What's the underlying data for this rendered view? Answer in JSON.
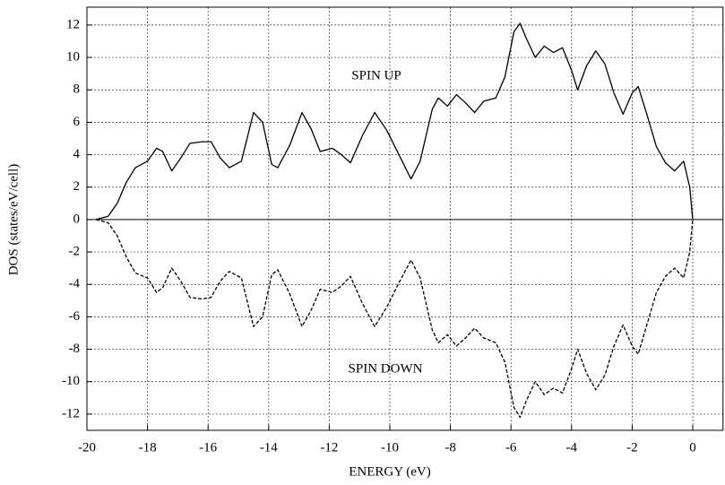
{
  "chart_data": {
    "type": "line",
    "x_label": "ENERGY (eV)",
    "y_label": "DOS (states/eV/cell)",
    "xlim": [
      -20,
      1
    ],
    "ylim": [
      -13,
      13.1
    ],
    "xticks": [
      -20,
      -18,
      -16,
      -14,
      -12,
      -10,
      -8,
      -6,
      -4,
      -2,
      0
    ],
    "yticks": [
      -12,
      -10,
      -8,
      -6,
      -4,
      -2,
      0,
      2,
      4,
      6,
      8,
      10,
      12
    ],
    "grid": true,
    "zero_line": true,
    "x": [
      -19.7,
      -19.3,
      -19.0,
      -18.7,
      -18.4,
      -18.0,
      -17.7,
      -17.5,
      -17.2,
      -16.9,
      -16.6,
      -16.2,
      -15.9,
      -15.6,
      -15.3,
      -14.9,
      -14.5,
      -14.2,
      -13.9,
      -13.7,
      -13.3,
      -12.9,
      -12.6,
      -12.3,
      -11.9,
      -11.6,
      -11.3,
      -10.9,
      -10.5,
      -10.1,
      -9.7,
      -9.3,
      -9.0,
      -8.6,
      -8.4,
      -8.1,
      -7.8,
      -7.5,
      -7.2,
      -6.9,
      -6.5,
      -6.2,
      -5.9,
      -5.7,
      -5.5,
      -5.2,
      -4.9,
      -4.6,
      -4.3,
      -4.0,
      -3.8,
      -3.5,
      -3.2,
      -2.9,
      -2.6,
      -2.3,
      -2.0,
      -1.8,
      -1.5,
      -1.2,
      -0.9,
      -0.6,
      -0.3,
      -0.1,
      0
    ],
    "series": [
      {
        "name": "SPIN UP",
        "color": "#000000",
        "dash": "solid",
        "values": [
          0,
          0.2,
          1.0,
          2.3,
          3.2,
          3.6,
          4.4,
          4.2,
          3.0,
          3.8,
          4.7,
          4.8,
          4.8,
          3.8,
          3.2,
          3.6,
          6.6,
          6.0,
          3.4,
          3.2,
          4.6,
          6.6,
          5.6,
          4.2,
          4.4,
          4.0,
          3.5,
          5.2,
          6.6,
          5.5,
          4.0,
          2.5,
          3.6,
          6.8,
          7.5,
          7.0,
          7.7,
          7.2,
          6.6,
          7.3,
          7.5,
          8.8,
          11.6,
          12.1,
          11.2,
          10.0,
          10.7,
          10.3,
          10.6,
          9.2,
          8.0,
          9.5,
          10.4,
          9.6,
          7.8,
          6.5,
          7.8,
          8.2,
          6.4,
          4.5,
          3.5,
          3.0,
          3.6,
          2.0,
          0
        ]
      },
      {
        "name": "SPIN DOWN",
        "color": "#000000",
        "dash": "dashed",
        "values": [
          0,
          -0.2,
          -1.0,
          -2.3,
          -3.3,
          -3.6,
          -4.5,
          -4.2,
          -3.0,
          -3.8,
          -4.8,
          -4.9,
          -4.8,
          -3.8,
          -3.2,
          -3.6,
          -6.6,
          -6.0,
          -3.4,
          -3.1,
          -4.6,
          -6.6,
          -5.6,
          -4.3,
          -4.5,
          -4.1,
          -3.5,
          -5.2,
          -6.6,
          -5.4,
          -3.9,
          -2.5,
          -3.6,
          -6.8,
          -7.6,
          -7.1,
          -7.8,
          -7.3,
          -6.7,
          -7.3,
          -7.6,
          -8.8,
          -11.6,
          -12.2,
          -11.2,
          -10.0,
          -10.8,
          -10.4,
          -10.7,
          -9.2,
          -8.0,
          -9.5,
          -10.5,
          -9.6,
          -7.8,
          -6.5,
          -7.8,
          -8.3,
          -6.4,
          -4.5,
          -3.5,
          -3.0,
          -3.6,
          -2.0,
          0
        ]
      }
    ]
  }
}
